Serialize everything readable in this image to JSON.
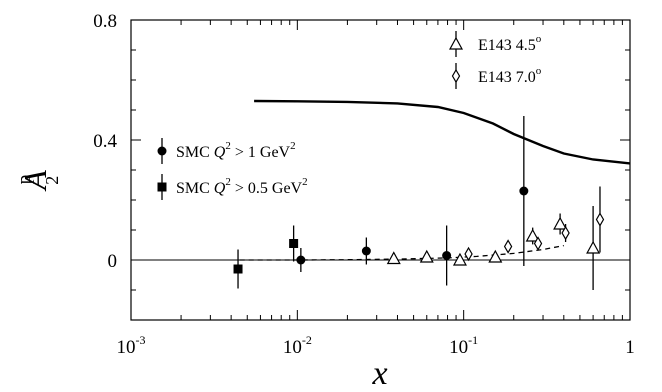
{
  "chart_data": {
    "type": "scatter",
    "x_axis": {
      "scale": "log",
      "range": [
        0.001,
        1
      ],
      "ticks": [
        {
          "value": 0.001,
          "base": "10",
          "exp": "-3"
        },
        {
          "value": 0.01,
          "base": "10",
          "exp": "-2"
        },
        {
          "value": 0.1,
          "base": "10",
          "exp": "-1"
        },
        {
          "value": 1,
          "base": "1",
          "exp": ""
        }
      ],
      "label": "x"
    },
    "y_axis": {
      "scale": "linear",
      "range": [
        -0.2,
        0.8
      ],
      "ticks": [
        {
          "value": 0,
          "label": "0"
        },
        {
          "value": 0.4,
          "label": "0.4"
        },
        {
          "value": 0.8,
          "label": "0.8"
        }
      ],
      "label": {
        "main": "A",
        "sub": "2",
        "sup": "p"
      }
    },
    "zero_line": true,
    "legend": {
      "placement": "top-right and left",
      "entries": [
        {
          "text": "E143 4.5",
          "sup": "o",
          "marker": "triangle-open"
        },
        {
          "text": "E143 7.0",
          "sup": "o",
          "marker": "diamond-open"
        },
        {
          "text": "SMC Q",
          "sup": "2",
          "rest": " > 1 GeV",
          "sup2": "2",
          "marker": "circle-filled"
        },
        {
          "text": "SMC Q",
          "sup": "2",
          "rest": " > 0.5 GeV",
          "sup2": "2",
          "marker": "square-filled"
        }
      ]
    },
    "series": [
      {
        "name": "E143 4.5°",
        "marker": "triangle-open",
        "points": [
          {
            "x": 0.038,
            "y": 0.005,
            "err": 0.012
          },
          {
            "x": 0.06,
            "y": 0.01,
            "err": 0.012
          },
          {
            "x": 0.095,
            "y": 0.0,
            "err": 0.015
          },
          {
            "x": 0.155,
            "y": 0.01,
            "err": 0.015
          },
          {
            "x": 0.26,
            "y": 0.08,
            "err": 0.028
          },
          {
            "x": 0.38,
            "y": 0.12,
            "err": 0.035
          },
          {
            "x": 0.6,
            "y": 0.04,
            "err": 0.14
          }
        ]
      },
      {
        "name": "E143 7.0°",
        "marker": "diamond-open",
        "points": [
          {
            "x": 0.107,
            "y": 0.02,
            "err": 0.012
          },
          {
            "x": 0.185,
            "y": 0.045,
            "err": 0.012
          },
          {
            "x": 0.28,
            "y": 0.055,
            "err": 0.015
          },
          {
            "x": 0.41,
            "y": 0.09,
            "err": 0.03
          },
          {
            "x": 0.66,
            "y": 0.135,
            "err": 0.11
          }
        ]
      },
      {
        "name": "SMC Q2 > 1 GeV2",
        "marker": "circle-filled",
        "points": [
          {
            "x": 0.0105,
            "y": 0.0,
            "err": 0.04
          },
          {
            "x": 0.026,
            "y": 0.03,
            "err": 0.045
          },
          {
            "x": 0.079,
            "y": 0.015,
            "err": 0.1
          },
          {
            "x": 0.23,
            "y": 0.23,
            "err": 0.25
          }
        ]
      },
      {
        "name": "SMC Q2 > 0.5 GeV2",
        "marker": "square-filled",
        "points": [
          {
            "x": 0.0044,
            "y": -0.03,
            "err": 0.065
          },
          {
            "x": 0.0095,
            "y": 0.055,
            "err": 0.06
          }
        ]
      }
    ],
    "curves": [
      {
        "style": "solid",
        "points": [
          {
            "x": 0.0055,
            "y": 0.53
          },
          {
            "x": 0.01,
            "y": 0.529
          },
          {
            "x": 0.02,
            "y": 0.527
          },
          {
            "x": 0.04,
            "y": 0.522
          },
          {
            "x": 0.07,
            "y": 0.51
          },
          {
            "x": 0.1,
            "y": 0.49
          },
          {
            "x": 0.15,
            "y": 0.455
          },
          {
            "x": 0.2,
            "y": 0.42
          },
          {
            "x": 0.3,
            "y": 0.38
          },
          {
            "x": 0.4,
            "y": 0.355
          },
          {
            "x": 0.6,
            "y": 0.335
          },
          {
            "x": 1.0,
            "y": 0.322
          }
        ]
      },
      {
        "style": "dashed",
        "points": [
          {
            "x": 0.0045,
            "y": 0.0
          },
          {
            "x": 0.01,
            "y": 0.0
          },
          {
            "x": 0.02,
            "y": 0.001
          },
          {
            "x": 0.04,
            "y": 0.003
          },
          {
            "x": 0.08,
            "y": 0.007
          },
          {
            "x": 0.12,
            "y": 0.012
          },
          {
            "x": 0.2,
            "y": 0.022
          },
          {
            "x": 0.3,
            "y": 0.035
          },
          {
            "x": 0.4,
            "y": 0.048
          }
        ]
      }
    ]
  }
}
